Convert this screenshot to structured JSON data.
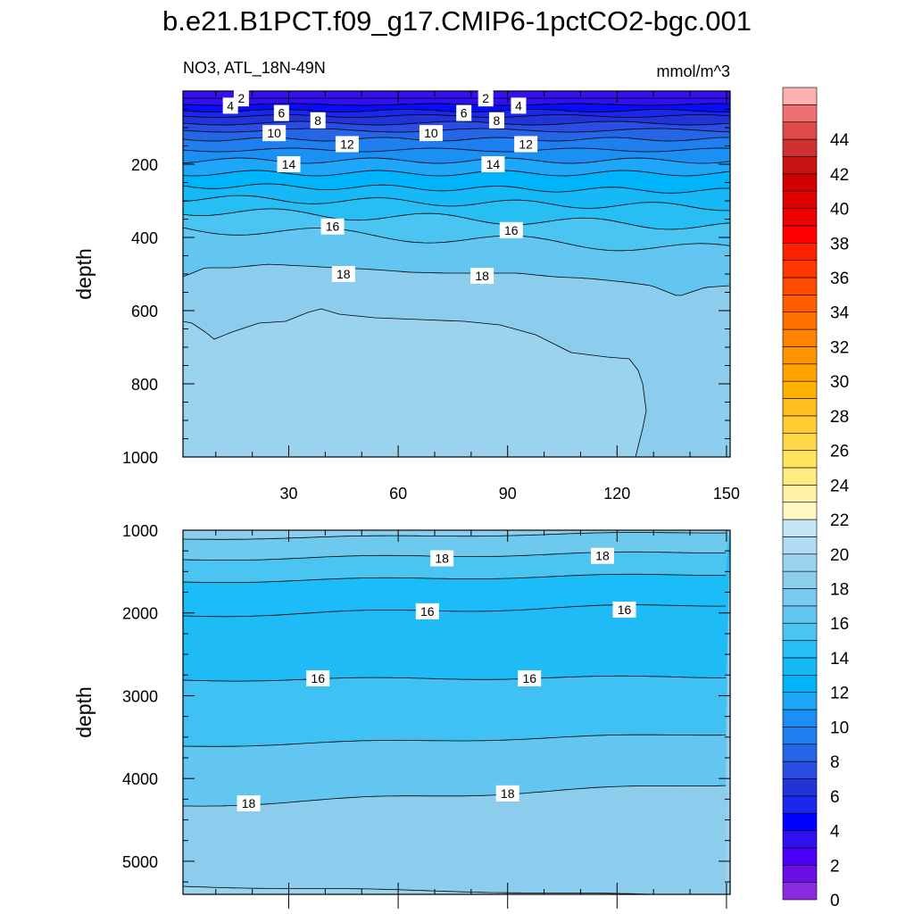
{
  "title": "b.e21.B1PCT.f09_g17.CMIP6-1pctCO2-bgc.001",
  "colors": {
    "bands": [
      "#8a2be2",
      "#6a0ee4",
      "#4b00f5",
      "#2e10f0",
      "#0000ff",
      "#1a28ee",
      "#2233d8",
      "#2a4ee4",
      "#2666e6",
      "#1e7ff0",
      "#1a8ff4",
      "#1ea6f8",
      "#00b4fb",
      "#16b8f6",
      "#27bef4",
      "#4ac5f2",
      "#63c6f0",
      "#7ac9ee",
      "#8ccdee",
      "#9bd3ef",
      "#b1dbf2",
      "#c4e5f5",
      "#fff9c4",
      "#fff2a8",
      "#ffec80",
      "#ffe45c",
      "#ffd84a",
      "#ffcc33",
      "#ffbe1e",
      "#ffb000",
      "#ffa200",
      "#ff9400",
      "#ff8200",
      "#ff7000",
      "#ff5e00",
      "#ff4b00",
      "#ff3600",
      "#ff2000",
      "#ff0000",
      "#f00000",
      "#e00000",
      "#d00000",
      "#c61414",
      "#d03030",
      "#e04a4a",
      "#ef7070",
      "#fcb0b0"
    ],
    "contour_line": "#000000"
  },
  "chart_data": [
    {
      "type": "contour",
      "variable_label": "NO3, ATL_18N-49N",
      "units": "mmol/m^3",
      "ylabel": "depth",
      "xlabel": "",
      "x_ticks": [
        30,
        60,
        90,
        120,
        150
      ],
      "y_ticks": [
        200,
        400,
        600,
        800,
        1000
      ],
      "xlim": [
        1,
        151
      ],
      "ylim": [
        0,
        1000
      ],
      "y_reversed": true,
      "contour_levels": [
        2,
        4,
        6,
        8,
        10,
        12,
        14,
        16,
        18,
        20
      ],
      "contour_labels": [
        {
          "text": "2",
          "x": 17,
          "y": 20
        },
        {
          "text": "4",
          "x": 14,
          "y": 40
        },
        {
          "text": "6",
          "x": 28,
          "y": 60
        },
        {
          "text": "8",
          "x": 38,
          "y": 80
        },
        {
          "text": "10",
          "x": 26,
          "y": 115
        },
        {
          "text": "12",
          "x": 46,
          "y": 145
        },
        {
          "text": "14",
          "x": 30,
          "y": 200
        },
        {
          "text": "16",
          "x": 42,
          "y": 370
        },
        {
          "text": "18",
          "x": 45,
          "y": 500
        },
        {
          "text": "2",
          "x": 84,
          "y": 20
        },
        {
          "text": "4",
          "x": 93,
          "y": 40
        },
        {
          "text": "6",
          "x": 78,
          "y": 60
        },
        {
          "text": "8",
          "x": 87,
          "y": 80
        },
        {
          "text": "10",
          "x": 69,
          "y": 115
        },
        {
          "text": "12",
          "x": 95,
          "y": 145
        },
        {
          "text": "14",
          "x": 86,
          "y": 200
        },
        {
          "text": "16",
          "x": 91,
          "y": 380
        },
        {
          "text": "18",
          "x": 83,
          "y": 505
        }
      ]
    },
    {
      "type": "contour",
      "ylabel": "depth",
      "xlabel": "",
      "x_ticks": [
        30,
        60,
        90,
        120,
        150
      ],
      "y_ticks": [
        1000,
        2000,
        3000,
        4000,
        5000
      ],
      "xlim": [
        1,
        151
      ],
      "ylim": [
        1000,
        5400
      ],
      "y_reversed": true,
      "contour_levels": [
        16,
        18,
        20
      ],
      "contour_labels": [
        {
          "text": "18",
          "x": 72,
          "y": 1340
        },
        {
          "text": "18",
          "x": 116,
          "y": 1310
        },
        {
          "text": "16",
          "x": 68,
          "y": 1980
        },
        {
          "text": "16",
          "x": 122,
          "y": 1960
        },
        {
          "text": "16",
          "x": 38,
          "y": 2790
        },
        {
          "text": "16",
          "x": 96,
          "y": 2790
        },
        {
          "text": "18",
          "x": 19,
          "y": 4300
        },
        {
          "text": "18",
          "x": 90,
          "y": 4180
        }
      ]
    }
  ],
  "colorbar": {
    "labels": [
      "0",
      "2",
      "4",
      "6",
      "8",
      "10",
      "12",
      "14",
      "16",
      "18",
      "20",
      "22",
      "24",
      "26",
      "28",
      "30",
      "32",
      "34",
      "36",
      "38",
      "40",
      "42",
      "44"
    ],
    "bands_per_label": 2
  }
}
